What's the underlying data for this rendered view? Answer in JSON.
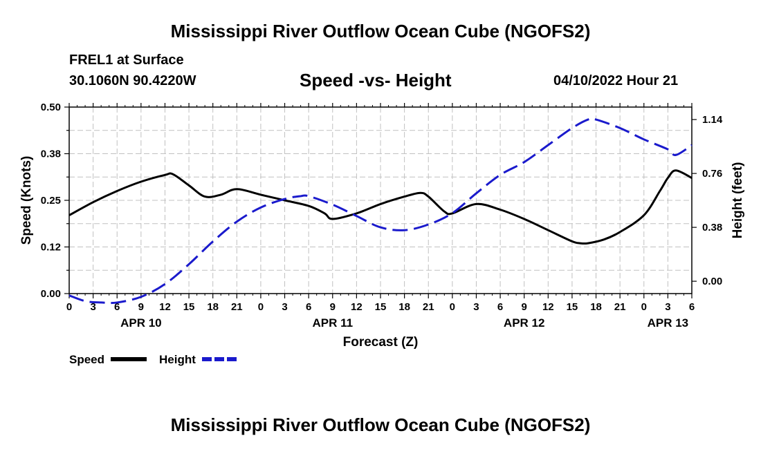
{
  "page": {
    "title": "Mississippi River Outflow Ocean Cube (NGOFS2)",
    "title_repeat": "Mississippi River Outflow Ocean Cube (NGOFS2)",
    "station": "FREL1 at Surface",
    "coords": "30.1060N  90.4220W",
    "datetime": "04/10/2022 Hour 21"
  },
  "chart_data": {
    "type": "line",
    "title": "Speed -vs- Height",
    "xlabel": "Forecast (Z)",
    "ylabel": "Speed (Knots)",
    "y2label": "Height (feet)",
    "x_range_hours": [
      0,
      78
    ],
    "x_tick_labels": [
      "0",
      "3",
      "6",
      "9",
      "12",
      "15",
      "18",
      "21",
      "0",
      "3",
      "6",
      "9",
      "12",
      "15",
      "18",
      "21",
      "0",
      "3",
      "6",
      "9",
      "12",
      "15",
      "18",
      "21",
      "0",
      "3",
      "6"
    ],
    "day_labels": [
      {
        "label": "APR 10",
        "hour": 9
      },
      {
        "label": "APR 11",
        "hour": 33
      },
      {
        "label": "APR 12",
        "hour": 57
      },
      {
        "label": "APR 13",
        "hour": 75
      }
    ],
    "ylim": [
      0,
      0.5
    ],
    "y_ticks": [
      "0.00",
      "0.12",
      "0.25",
      "0.38",
      "0.50"
    ],
    "y2lim": [
      -0.087,
      1.228
    ],
    "y2_ticks": [
      "0.00",
      "0.38",
      "0.76",
      "1.14"
    ],
    "legend": [
      {
        "name": "Speed",
        "color": "#000000",
        "style": "solid"
      },
      {
        "name": "Height",
        "color": "#1a1acc",
        "style": "dashed"
      }
    ],
    "series": [
      {
        "name": "Speed",
        "axis": "left",
        "color": "#000000",
        "x": [
          0,
          3,
          6,
          9,
          12,
          13,
          15,
          17,
          19,
          21,
          24,
          27,
          30,
          32,
          33,
          36,
          39,
          42,
          44,
          45,
          47,
          48,
          51,
          54,
          57,
          60,
          63,
          64,
          65,
          67,
          69,
          72,
          74,
          75,
          76,
          78
        ],
        "values": [
          0.21,
          0.245,
          0.275,
          0.3,
          0.318,
          0.32,
          0.29,
          0.26,
          0.265,
          0.28,
          0.265,
          0.25,
          0.235,
          0.215,
          0.2,
          0.215,
          0.24,
          0.26,
          0.27,
          0.26,
          0.22,
          0.215,
          0.24,
          0.225,
          0.2,
          0.17,
          0.14,
          0.135,
          0.135,
          0.145,
          0.165,
          0.21,
          0.275,
          0.31,
          0.33,
          0.31
        ]
      },
      {
        "name": "Height",
        "axis": "right",
        "color": "#1a1acc",
        "x": [
          0,
          2,
          4,
          6,
          9,
          12,
          15,
          18,
          21,
          24,
          27,
          29,
          30,
          33,
          36,
          39,
          42,
          45,
          48,
          51,
          54,
          57,
          60,
          63,
          65,
          66,
          69,
          72,
          75,
          76,
          78
        ],
        "values": [
          -0.1,
          -0.14,
          -0.15,
          -0.15,
          -0.11,
          -0.02,
          0.12,
          0.28,
          0.42,
          0.52,
          0.58,
          0.6,
          0.6,
          0.54,
          0.46,
          0.38,
          0.36,
          0.4,
          0.48,
          0.62,
          0.75,
          0.84,
          0.96,
          1.08,
          1.14,
          1.14,
          1.08,
          1.0,
          0.93,
          0.89,
          0.96
        ]
      }
    ]
  }
}
